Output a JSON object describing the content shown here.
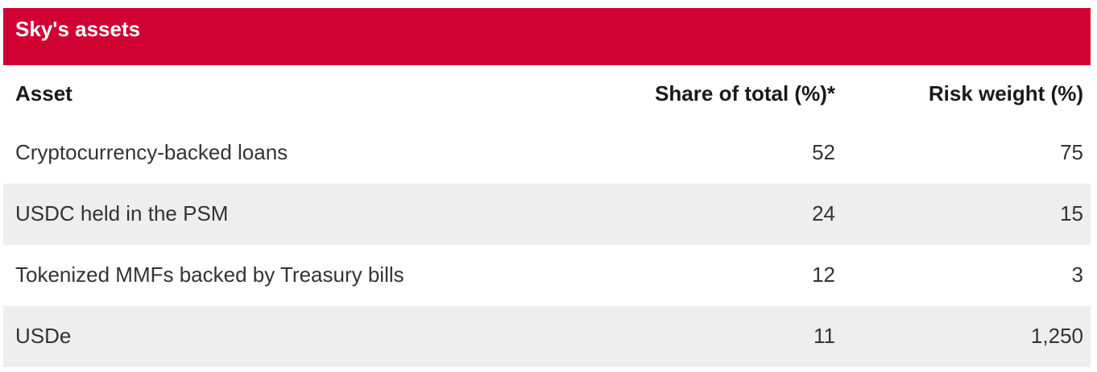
{
  "chart_data": {
    "type": "table",
    "title": "Sky's assets",
    "columns": [
      "Asset",
      "Share of total (%)*",
      "Risk weight (%)"
    ],
    "rows": [
      [
        "Cryptocurrency-backed loans",
        52,
        75
      ],
      [
        "USDC held in the PSM",
        24,
        15
      ],
      [
        "Tokenized MMFs backed by Treasury bills",
        12,
        3
      ],
      [
        "USDe",
        11,
        1250
      ]
    ]
  },
  "table": {
    "title": "Sky's assets",
    "columns": {
      "asset": "Asset",
      "share": "Share of total (%)*",
      "risk": "Risk weight (%)"
    },
    "rows": [
      {
        "asset": "Cryptocurrency-backed loans",
        "share": "52",
        "risk": "75"
      },
      {
        "asset": "USDC held in the PSM",
        "share": "24",
        "risk": "15"
      },
      {
        "asset": "Tokenized MMFs backed by Treasury bills",
        "share": "12",
        "risk": "3"
      },
      {
        "asset": "USDe",
        "share": "11",
        "risk": "1,250"
      }
    ]
  },
  "colors": {
    "title_bar_bg": "#D00032",
    "title_text": "#FFFFFF",
    "shaded_row_bg": "#EEEEEE",
    "row_bg": "#FFFFFF",
    "header_text": "#1A1A1A",
    "body_text": "#333333"
  }
}
